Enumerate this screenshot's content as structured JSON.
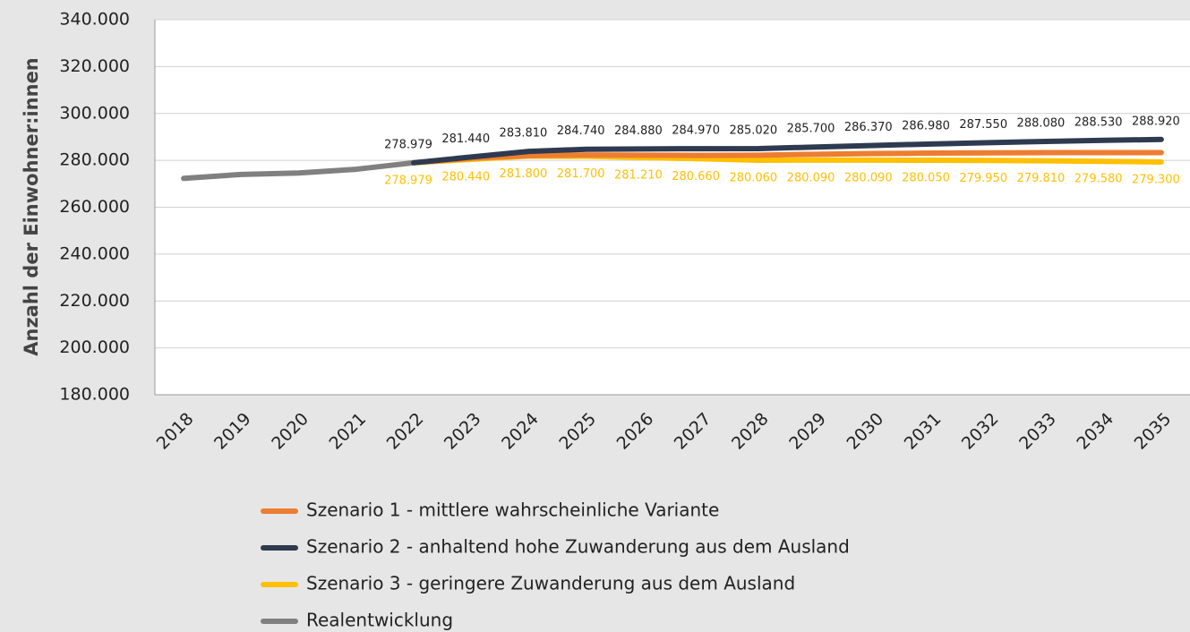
{
  "chart_data": {
    "type": "line",
    "y_label": "Anzahl der Einwohner:innen",
    "categories": [
      "2018",
      "2019",
      "2020",
      "2021",
      "2022",
      "2023",
      "2024",
      "2025",
      "2026",
      "2027",
      "2028",
      "2029",
      "2030",
      "2031",
      "2032",
      "2033",
      "2034",
      "2035"
    ],
    "ylim": [
      180000,
      340000
    ],
    "yticks": [
      {
        "value": 180000,
        "label": "180.000"
      },
      {
        "value": 200000,
        "label": "200.000"
      },
      {
        "value": 220000,
        "label": "220.000"
      },
      {
        "value": 240000,
        "label": "240.000"
      },
      {
        "value": 260000,
        "label": "260.000"
      },
      {
        "value": 280000,
        "label": "280.000"
      },
      {
        "value": 300000,
        "label": "300.000"
      },
      {
        "value": 320000,
        "label": "320.000"
      },
      {
        "value": 340000,
        "label": "340.000"
      }
    ],
    "grid": true,
    "series": [
      {
        "name": "Szenario 1 - mittlere wahrscheinliche Variante",
        "color": "#ed7d31",
        "values": [
          null,
          null,
          null,
          null,
          278979,
          280900,
          282000,
          282300,
          282200,
          282100,
          282200,
          282600,
          282900,
          283100,
          283200,
          283300,
          283300,
          283300
        ]
      },
      {
        "name": "Szenario 2 - anhaltend hohe Zuwanderung aus dem Ausland",
        "color": "#2e3a4f",
        "values": [
          null,
          null,
          null,
          null,
          278979,
          281440,
          283810,
          284740,
          284880,
          284970,
          285020,
          285700,
          286370,
          286980,
          287550,
          288080,
          288530,
          288920
        ],
        "value_labels": [
          null,
          null,
          null,
          null,
          "278.979",
          "281.440",
          "283.810",
          "284.740",
          "284.880",
          "284.970",
          "285.020",
          "285.700",
          "286.370",
          "286.980",
          "287.550",
          "288.080",
          "288.530",
          "288.920"
        ]
      },
      {
        "name": "Szenario 3 - geringere Zuwanderung aus dem Ausland",
        "color": "#ffc000",
        "values": [
          null,
          null,
          null,
          null,
          278979,
          280440,
          281800,
          281700,
          281210,
          280660,
          280060,
          280090,
          280090,
          280050,
          279950,
          279810,
          279580,
          279300
        ],
        "value_labels": [
          null,
          null,
          null,
          null,
          "278.979",
          "280.440",
          "281.800",
          "281.700",
          "281.210",
          "280.660",
          "280.060",
          "280.090",
          "280.090",
          "280.050",
          "279.950",
          "279.810",
          "279.580",
          "279.300"
        ]
      },
      {
        "name": "Realentwicklung",
        "color": "#808080",
        "values": [
          272300,
          274000,
          274600,
          276200,
          278979,
          null,
          null,
          null,
          null,
          null,
          null,
          null,
          null,
          null,
          null,
          null,
          null,
          null
        ]
      }
    ]
  }
}
